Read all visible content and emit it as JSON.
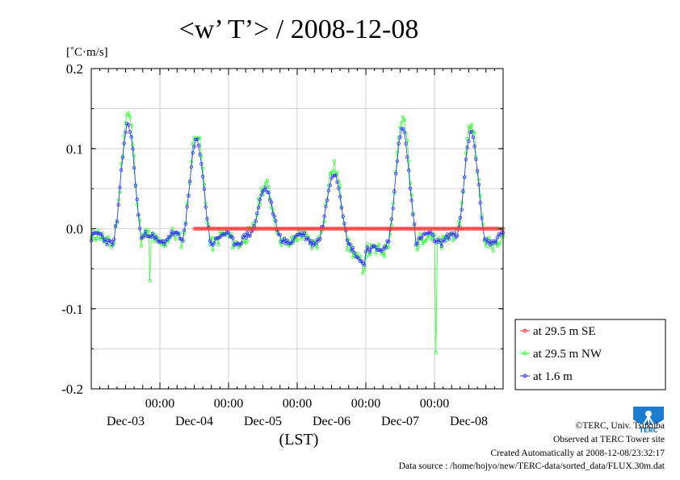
{
  "chart_data": {
    "type": "line",
    "title": "<w’ T’> / 2008-12-08",
    "unit_label": "[˚C·m/s]",
    "xlabel": "(LST)",
    "ylim": [
      -0.2,
      0.2
    ],
    "y_ticks": [
      0.2,
      0.1,
      0.0,
      -0.1,
      -0.2
    ],
    "y_tick_labels": [
      "0.2",
      "0.1",
      "0.0",
      "-0.1",
      "-0.2"
    ],
    "x_range_days": [
      0,
      6
    ],
    "x_ticks": [
      {
        "day": 1,
        "time": "00:00",
        "date": "Dec-03"
      },
      {
        "day": 2,
        "time": "00:00",
        "date": "Dec-04"
      },
      {
        "day": 3,
        "time": "00:00",
        "date": "Dec-05"
      },
      {
        "day": 4,
        "time": "00:00",
        "date": "Dec-06"
      },
      {
        "day": 5,
        "time": "00:00",
        "date": "Dec-07"
      }
    ],
    "x_last_date": "Dec-08",
    "grid": true,
    "legend_position": "right",
    "series": [
      {
        "name": "at 29.5 m SE",
        "color": "#ff3030",
        "x_start": 1.5,
        "x_end": 6.0,
        "values": "zero"
      },
      {
        "name": "at 29.5 m NW",
        "color": "#30ff30"
      },
      {
        "name": "at 1.6 m",
        "color": "#3030ff"
      }
    ]
  },
  "footer": {
    "copyright": "©TERC, Univ. Tsukuba",
    "observed": "Observed at TERC Tower site",
    "created": "Created Automatically at 2008-12-08/23:32:17",
    "source": "Data source : /home/hojyo/new/TERC-data/sorted_data/FLUX.30m.dat"
  },
  "logo": {
    "text": "TERC",
    "icon": "terc-logo-icon"
  }
}
